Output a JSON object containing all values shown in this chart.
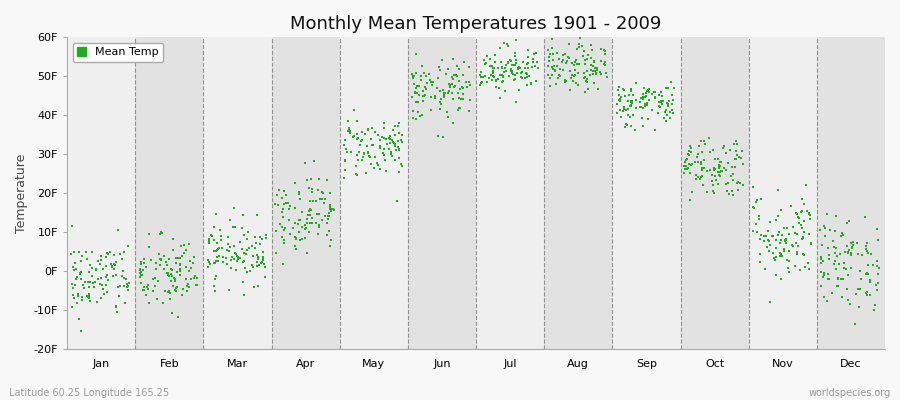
{
  "title": "Monthly Mean Temperatures 1901 - 2009",
  "ylabel": "Temperature",
  "bottom_left_label": "Latitude 60.25 Longitude 165.25",
  "bottom_right_label": "worldspecies.org",
  "legend_label": "Mean Temp",
  "marker_color": "#22AA22",
  "fig_facecolor": "#F8F8F8",
  "plot_facecolor": "#F0F0F0",
  "band_even": "#EFEFEF",
  "band_odd": "#E2E2E2",
  "ylim": [
    -20,
    60
  ],
  "yticks": [
    -20,
    -10,
    0,
    10,
    20,
    30,
    40,
    50,
    60
  ],
  "ytick_labels": [
    "-20F",
    "-10F",
    "0F",
    "10F",
    "20F",
    "30F",
    "40F",
    "50F",
    "60F"
  ],
  "months": [
    "Jan",
    "Feb",
    "Mar",
    "Apr",
    "May",
    "Jun",
    "Jul",
    "Aug",
    "Sep",
    "Oct",
    "Nov",
    "Dec"
  ],
  "month_means": [
    -2,
    -1,
    5,
    15,
    32,
    46,
    52,
    52,
    43,
    27,
    9,
    2
  ],
  "month_stds": [
    5,
    5,
    4,
    5,
    4,
    4,
    3,
    3,
    3,
    4,
    6,
    6
  ],
  "n_points": 109,
  "random_seed": 42,
  "marker_size": 4,
  "dashed_line_color": "#888888",
  "dashed_linewidth": 0.8,
  "title_fontsize": 13,
  "tick_fontsize": 8,
  "ylabel_fontsize": 9,
  "legend_fontsize": 8
}
